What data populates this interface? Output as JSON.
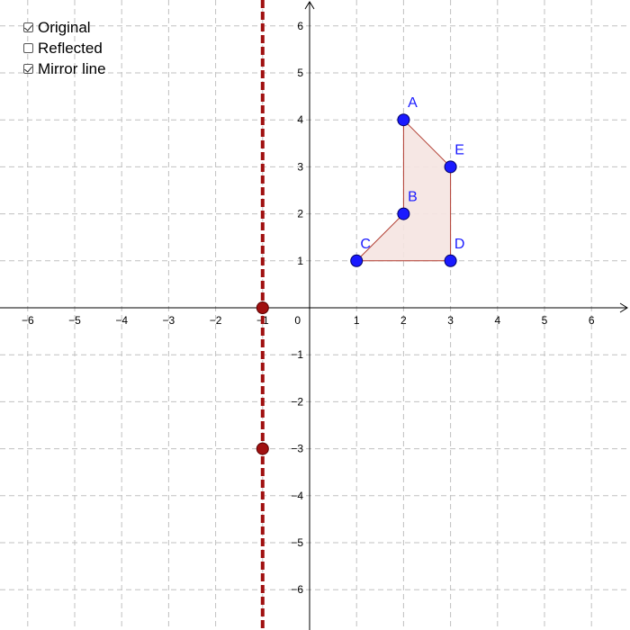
{
  "controls": [
    {
      "label": "Original",
      "checked": true
    },
    {
      "label": "Reflected",
      "checked": false
    },
    {
      "label": "Mirror line",
      "checked": true
    }
  ],
  "axes": {
    "x_ticks": [
      -6,
      -5,
      -4,
      -3,
      -2,
      -1,
      0,
      1,
      2,
      3,
      4,
      5,
      6
    ],
    "y_ticks": [
      6,
      5,
      4,
      3,
      2,
      1,
      -1,
      -2,
      -3,
      -4,
      -5,
      -6
    ],
    "origin_label": "0",
    "x_range": [
      -6.6,
      6.8
    ],
    "y_range": [
      -6.8,
      6.5
    ],
    "grid": true
  },
  "shape": {
    "vertices": [
      {
        "name": "A",
        "x": 2,
        "y": 4
      },
      {
        "name": "E",
        "x": 3,
        "y": 3
      },
      {
        "name": "D",
        "x": 3,
        "y": 1
      },
      {
        "name": "C",
        "x": 1,
        "y": 1
      },
      {
        "name": "B",
        "x": 2,
        "y": 2
      }
    ],
    "fill_color": "#f5e4e1",
    "edge_color": "#b03a2e",
    "point_color": "#1a1aff",
    "label_color": "#1a1aff"
  },
  "mirror_line": {
    "x": -1,
    "points": [
      {
        "x": -1,
        "y": 0
      },
      {
        "x": -1,
        "y": -3
      }
    ],
    "color": "#a01010"
  },
  "colors": {
    "grid": "#c0c0c0",
    "axis": "#000000"
  }
}
